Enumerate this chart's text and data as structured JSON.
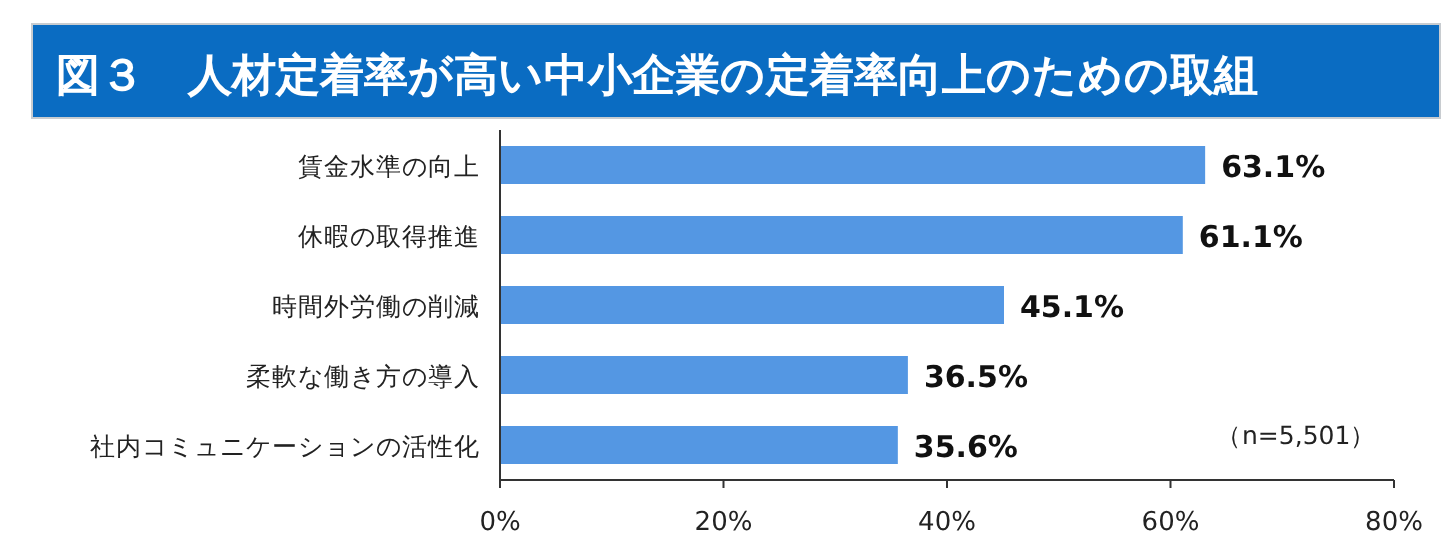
{
  "chart_data": {
    "type": "bar",
    "orientation": "horizontal",
    "title": "図３　人材定着率が高い中小企業の定着率向上のための取組",
    "categories": [
      "賃金水準の向上",
      "休暇の取得推進",
      "時間外労働の削減",
      "柔軟な働き方の導入",
      "社内コミュニケーションの活性化"
    ],
    "values": [
      63.1,
      61.1,
      45.1,
      36.5,
      35.6
    ],
    "value_labels": [
      "63.1%",
      "61.1%",
      "45.1%",
      "36.5%",
      "35.6%"
    ],
    "color": "#5497e3",
    "xlim": [
      0,
      80
    ],
    "xticks": [
      {
        "value": 0,
        "label": "0%"
      },
      {
        "value": 20,
        "label": "20%"
      },
      {
        "value": 40,
        "label": "40%"
      },
      {
        "value": 60,
        "label": "60%"
      },
      {
        "value": 80,
        "label": "80%"
      }
    ],
    "annotations": [
      "（n=5,501）"
    ]
  }
}
